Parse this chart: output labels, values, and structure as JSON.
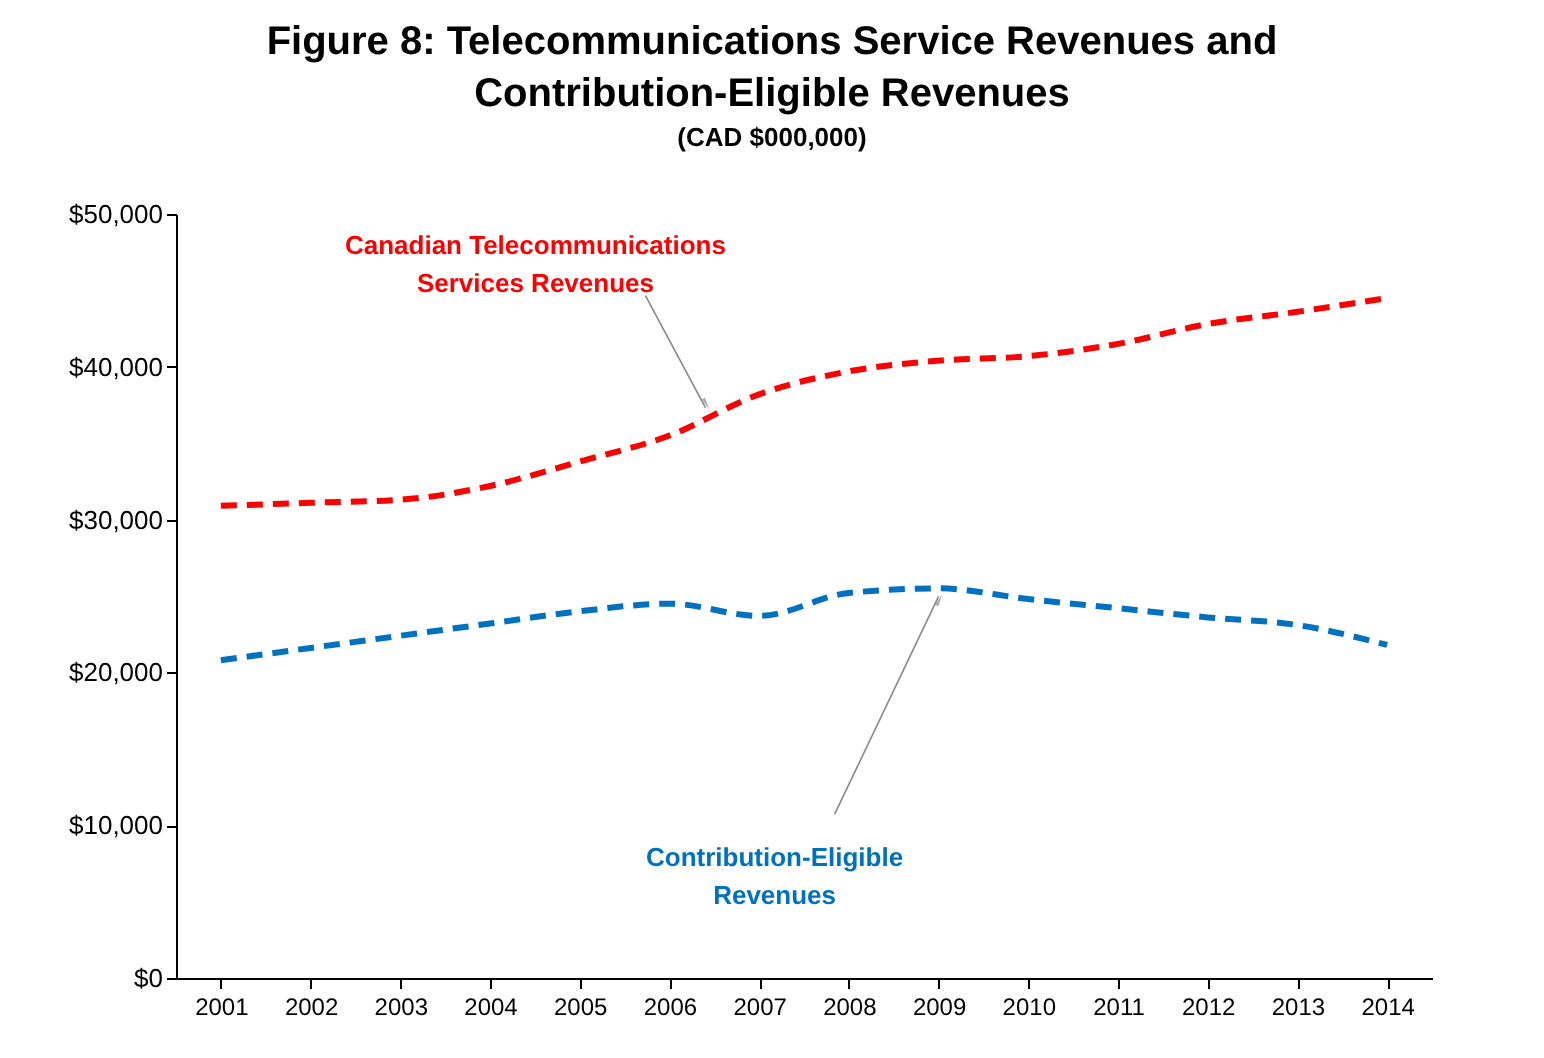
{
  "chart_data": {
    "type": "line",
    "title": "Figure 8: Telecommunications Service Revenues and Contribution-Eligible Revenues",
    "subtitle": "(CAD $000,000)",
    "categories": [
      "2001",
      "2002",
      "2003",
      "2004",
      "2005",
      "2006",
      "2007",
      "2008",
      "2009",
      "2010",
      "2011",
      "2012",
      "2013",
      "2014"
    ],
    "series": [
      {
        "name": "Canadian Telecommunications Services Revenues",
        "color": "#ff0000",
        "values": [
          30900,
          31100,
          31300,
          32200,
          33800,
          35500,
          38200,
          39700,
          40400,
          40700,
          41500,
          42800,
          43600,
          44500
        ]
      },
      {
        "name": "Contribution-Eligible Revenues",
        "color": "#0070c0",
        "values": [
          20800,
          21600,
          22400,
          23200,
          24000,
          24500,
          23700,
          25200,
          25500,
          24800,
          24200,
          23600,
          23100,
          21800
        ]
      }
    ],
    "ylim": [
      0,
      50000
    ],
    "yticks": [
      {
        "value": 0,
        "label": "$0"
      },
      {
        "value": 10000,
        "label": "$10,000"
      },
      {
        "value": 20000,
        "label": "$20,000"
      },
      {
        "value": 30000,
        "label": "$30,000"
      },
      {
        "value": 40000,
        "label": "$40,000"
      },
      {
        "value": 50000,
        "label": "$50,000"
      }
    ],
    "grid": false,
    "legend": false,
    "line_style": "dashed"
  }
}
